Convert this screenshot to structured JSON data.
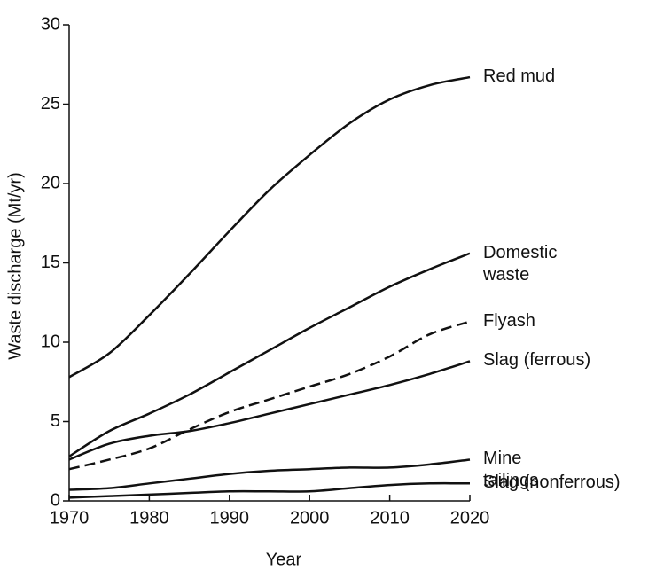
{
  "chart_data": {
    "type": "line",
    "xlabel": "Year",
    "ylabel": "Waste discharge (Mt/yr)",
    "x": [
      1970,
      1975,
      1980,
      1985,
      1990,
      1995,
      2000,
      2005,
      2010,
      2015,
      2020
    ],
    "xlim": [
      1970,
      2020
    ],
    "xticks": [
      1970,
      1980,
      1990,
      2000,
      2010,
      2020
    ],
    "ylim": [
      0,
      30
    ],
    "yticks": [
      0,
      5,
      10,
      15,
      20,
      25,
      30
    ],
    "grid": false,
    "series": [
      {
        "name": "Red mud",
        "color": "#111111",
        "dashed": false,
        "values": [
          7.8,
          9.3,
          11.7,
          14.3,
          17,
          19.6,
          21.8,
          23.8,
          25.3,
          26.2,
          26.7
        ]
      },
      {
        "name": "Domestic waste",
        "color": "#111111",
        "dashed": false,
        "values": [
          2.8,
          4.4,
          5.5,
          6.7,
          8.1,
          9.5,
          10.9,
          12.2,
          13.5,
          14.6,
          15.6
        ]
      },
      {
        "name": "Flyash",
        "color": "#111111",
        "dashed": true,
        "values": [
          2.0,
          2.6,
          3.3,
          4.5,
          5.6,
          6.4,
          7.2,
          8.0,
          9.1,
          10.5,
          11.3
        ]
      },
      {
        "name": "Slag (ferrous)",
        "color": "#111111",
        "dashed": false,
        "values": [
          2.6,
          3.6,
          4.1,
          4.4,
          4.9,
          5.5,
          6.1,
          6.7,
          7.3,
          8.0,
          8.8
        ]
      },
      {
        "name": "Mine tailings",
        "color": "#111111",
        "dashed": false,
        "values": [
          0.7,
          0.8,
          1.1,
          1.4,
          1.7,
          1.9,
          2.0,
          2.1,
          2.1,
          2.3,
          2.6
        ]
      },
      {
        "name": "Slag (nonferrous)",
        "color": "#111111",
        "dashed": false,
        "values": [
          0.2,
          0.3,
          0.4,
          0.5,
          0.6,
          0.6,
          0.6,
          0.8,
          1.0,
          1.1,
          1.1
        ]
      }
    ]
  }
}
